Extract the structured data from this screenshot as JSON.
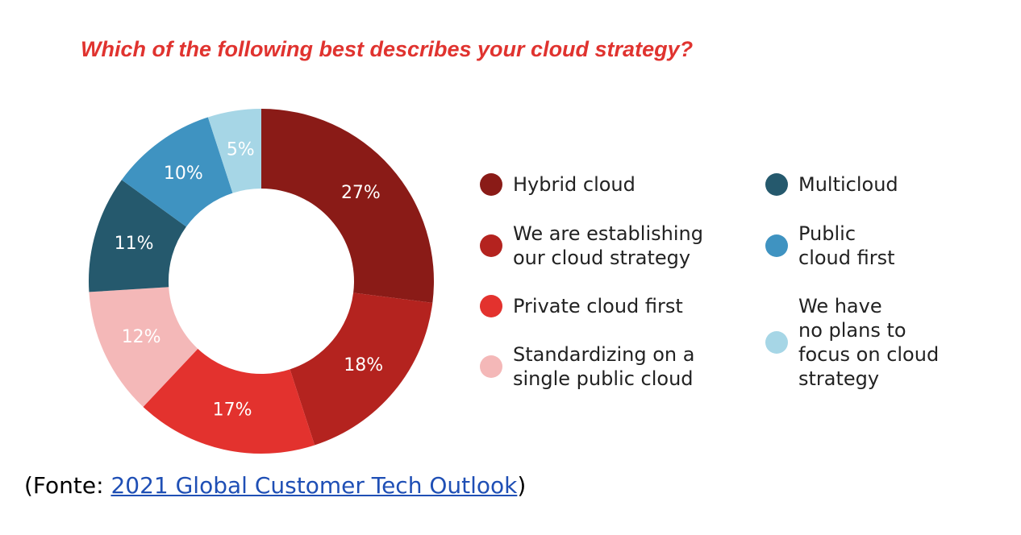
{
  "chart_data": {
    "type": "donut",
    "title": "Which of the following best describes your cloud strategy?",
    "series": [
      {
        "name": "Hybrid cloud",
        "color": "#8a1b17",
        "values": [
          27
        ],
        "value_labels": [
          "27%"
        ]
      },
      {
        "name": "We are establishing\nour cloud strategy",
        "color": "#b4231f",
        "values": [
          18
        ],
        "value_labels": [
          "18%"
        ]
      },
      {
        "name": "Private cloud first",
        "color": "#e3322e",
        "values": [
          17
        ],
        "value_labels": [
          "17%"
        ]
      },
      {
        "name": "Standardizing on a\nsingle public cloud",
        "color": "#f4b8b8",
        "values": [
          12
        ],
        "value_labels": [
          "12%"
        ]
      },
      {
        "name": "Multicloud",
        "color": "#25596d",
        "values": [
          11
        ],
        "value_labels": [
          "11%"
        ]
      },
      {
        "name": "Public\ncloud first",
        "color": "#3f93c1",
        "values": [
          10
        ],
        "value_labels": [
          "10%"
        ]
      },
      {
        "name": "We have\nno plans to\nfocus on cloud\nstrategy",
        "color": "#a6d6e6",
        "values": [
          5
        ],
        "value_labels": [
          "5%"
        ]
      }
    ]
  },
  "source": {
    "prefix": "(Fonte:",
    "link": "2021 Global Customer Tech Outlook",
    "suffix": ")"
  }
}
